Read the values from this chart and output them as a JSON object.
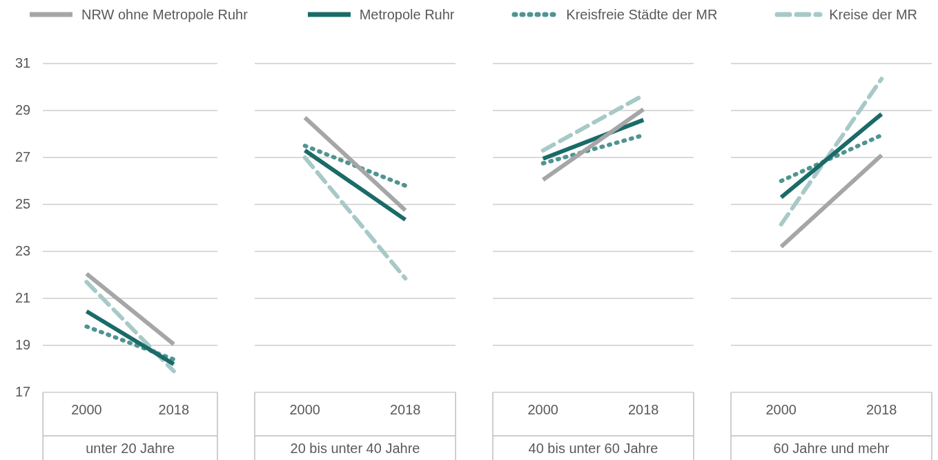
{
  "chart_data": [
    {
      "type": "line",
      "xlabel": "unter 20 Jahre",
      "categories": [
        "2000",
        "2018"
      ],
      "ylim": [
        17,
        31
      ],
      "yticks": [
        17,
        19,
        21,
        23,
        25,
        27,
        29,
        31
      ],
      "grid": "y",
      "legend": "top",
      "marker": "none",
      "series": [
        {
          "name": "NRW ohne Metropole Ruhr",
          "color": "#a6a6a6",
          "line_style": "solid",
          "values": [
            22.05,
            19.05
          ]
        },
        {
          "name": "Metropole Ruhr",
          "color": "#1a6b68",
          "line_style": "solid",
          "values": [
            20.45,
            18.2
          ]
        },
        {
          "name": "Kreisfreie Städte der MR",
          "color": "#4f9490",
          "line_style": "dotted",
          "values": [
            19.8,
            18.4
          ]
        },
        {
          "name": "Kreise der MR",
          "color": "#a7c9c7",
          "line_style": "dashed",
          "values": [
            21.7,
            17.9
          ]
        }
      ]
    },
    {
      "type": "line",
      "xlabel": "20 bis unter 40 Jahre",
      "categories": [
        "2000",
        "2018"
      ],
      "ylim": [
        17,
        31
      ],
      "yticks": [
        17,
        19,
        21,
        23,
        25,
        27,
        29,
        31
      ],
      "grid": "y",
      "tick_labels": "x",
      "marker": "none",
      "series": [
        {
          "color": "#a6a6a6",
          "line_style": "solid",
          "values": [
            28.7,
            24.75
          ]
        },
        {
          "color": "#1a6b68",
          "line_style": "solid",
          "values": [
            27.3,
            24.35
          ]
        },
        {
          "color": "#4f9490",
          "line_style": "dotted",
          "values": [
            27.5,
            25.8
          ]
        },
        {
          "color": "#a7c9c7",
          "line_style": "dashed",
          "values": [
            27.0,
            21.85
          ]
        }
      ]
    },
    {
      "type": "line",
      "xlabel": "40 bis unter 60 Jahre",
      "categories": [
        "2000",
        "2018"
      ],
      "ylim": [
        17,
        31
      ],
      "yticks": [
        17,
        19,
        21,
        23,
        25,
        27,
        29,
        31
      ],
      "grid": "y",
      "tick_labels": "x",
      "marker": "none",
      "series": [
        {
          "color": "#a6a6a6",
          "line_style": "solid",
          "values": [
            26.05,
            29.05
          ]
        },
        {
          "color": "#1a6b68",
          "line_style": "solid",
          "values": [
            26.95,
            28.6
          ]
        },
        {
          "color": "#4f9490",
          "line_style": "dotted",
          "values": [
            26.75,
            27.95
          ]
        },
        {
          "color": "#a7c9c7",
          "line_style": "dashed",
          "values": [
            27.3,
            29.65
          ]
        }
      ]
    },
    {
      "type": "line",
      "xlabel": "60 Jahre und mehr",
      "categories": [
        "2000",
        "2018"
      ],
      "ylim": [
        17,
        31
      ],
      "yticks": [
        17,
        19,
        21,
        23,
        25,
        27,
        29,
        31
      ],
      "grid": "y",
      "tick_labels": "x",
      "marker": "none",
      "series": [
        {
          "color": "#a6a6a6",
          "line_style": "solid",
          "values": [
            23.2,
            27.1
          ]
        },
        {
          "color": "#1a6b68",
          "line_style": "solid",
          "values": [
            25.3,
            28.85
          ]
        },
        {
          "color": "#4f9490",
          "line_style": "dotted",
          "values": [
            26.0,
            27.95
          ]
        },
        {
          "color": "#a7c9c7",
          "line_style": "dashed",
          "values": [
            24.15,
            30.35
          ]
        }
      ]
    }
  ]
}
